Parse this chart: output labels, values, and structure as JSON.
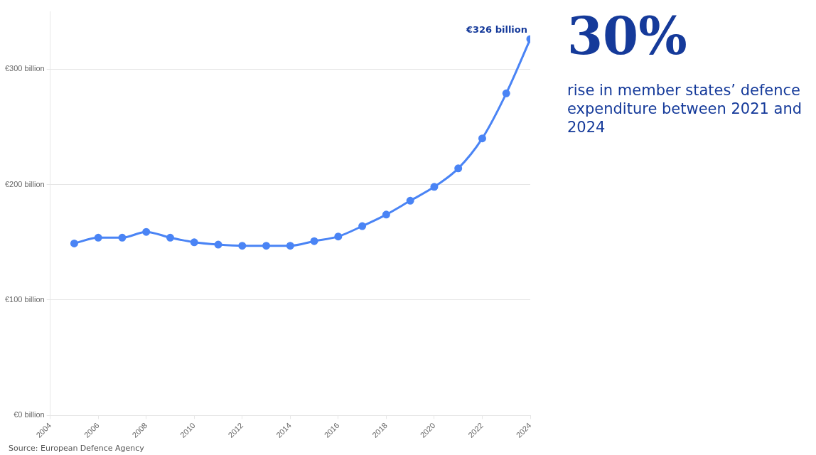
{
  "chart_data": {
    "type": "line",
    "x": [
      2005,
      2006,
      2007,
      2008,
      2009,
      2010,
      2011,
      2012,
      2013,
      2014,
      2015,
      2016,
      2017,
      2018,
      2019,
      2020,
      2021,
      2022,
      2023,
      2024
    ],
    "series": [
      {
        "color": "#4a84f5",
        "values": [
          149,
          154,
          154,
          159,
          154,
          150,
          148,
          147,
          147,
          147,
          151,
          155,
          164,
          174,
          186,
          198,
          214,
          240,
          279,
          326
        ]
      }
    ],
    "xlim": [
      2004,
      2024
    ],
    "xticks": [
      2004,
      2006,
      2008,
      2010,
      2012,
      2014,
      2016,
      2018,
      2020,
      2022,
      2024
    ],
    "ylim": [
      0,
      350
    ],
    "yticks": [
      {
        "value": 0,
        "label": "€0 billion"
      },
      {
        "value": 100,
        "label": "€100 billion"
      },
      {
        "value": 200,
        "label": "€200 billion"
      },
      {
        "value": 300,
        "label": "€300 billion"
      }
    ],
    "grid": "y",
    "marker": "circle",
    "line_style": "solid",
    "legend": false,
    "annotations": [
      {
        "text": "€326 billion",
        "x": 2024,
        "y": 326
      },
      "30%",
      "rise in member states’ defence expenditure between 2021 and 2024",
      "Source: European Defence Agency"
    ]
  }
}
